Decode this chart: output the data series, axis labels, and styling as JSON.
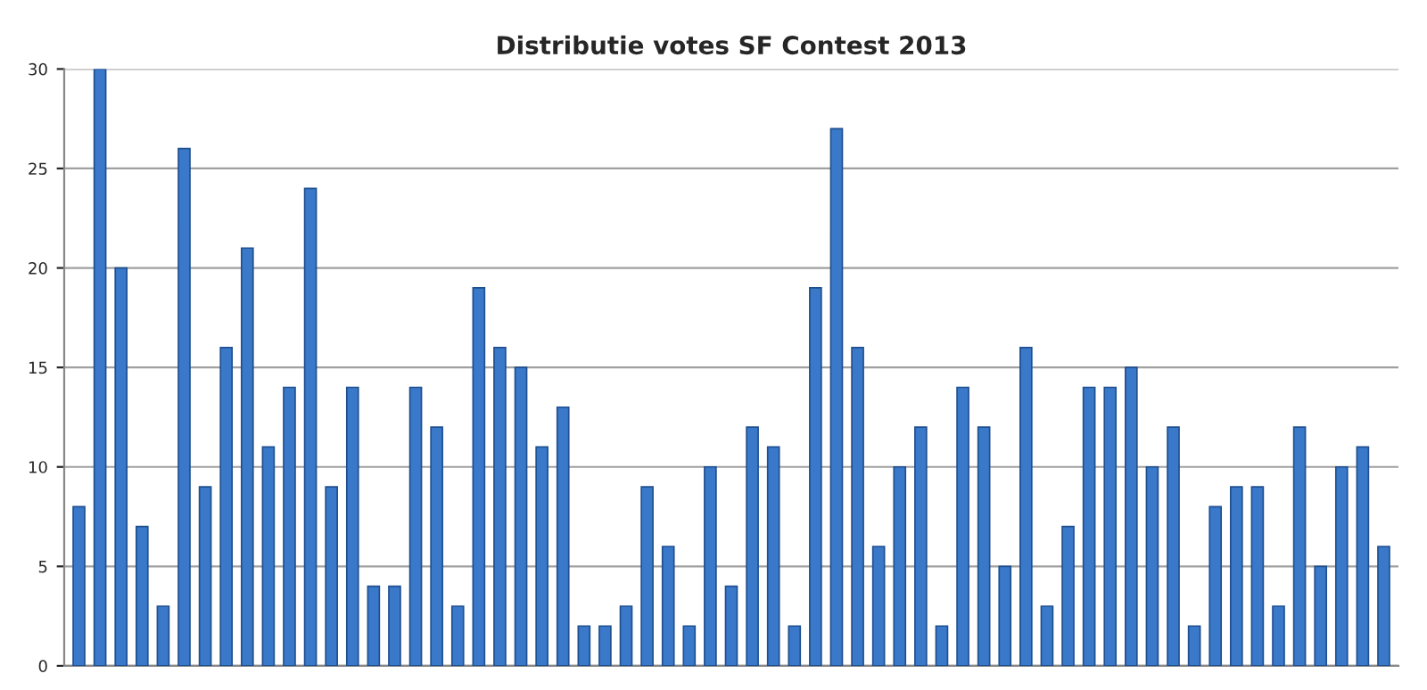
{
  "chart_data": {
    "type": "bar",
    "title": "Distributie votes SF Contest 2013",
    "categories": [
      null,
      null,
      null,
      null,
      null,
      null,
      null,
      null,
      null,
      null,
      null,
      null,
      null,
      null,
      null,
      null,
      null,
      null,
      null,
      null,
      null,
      null,
      null,
      null,
      null,
      null,
      null,
      null,
      null,
      null,
      null,
      null,
      null,
      null,
      null,
      null,
      null,
      null,
      null,
      null,
      null,
      null,
      null,
      null,
      null,
      null,
      null,
      null,
      null,
      null,
      null,
      null,
      null,
      null,
      null,
      null,
      null,
      null,
      null,
      null,
      null,
      null,
      null
    ],
    "values": [
      8,
      30,
      20,
      7,
      3,
      26,
      9,
      16,
      21,
      11,
      14,
      24,
      9,
      14,
      4,
      4,
      14,
      12,
      3,
      19,
      16,
      15,
      11,
      13,
      2,
      2,
      3,
      9,
      6,
      2,
      10,
      4,
      12,
      11,
      2,
      19,
      27,
      16,
      6,
      10,
      12,
      2,
      14,
      12,
      5,
      16,
      3,
      7,
      14,
      14,
      15,
      10,
      12,
      2,
      8,
      9,
      9,
      3,
      12,
      5,
      10,
      11,
      6
    ],
    "color": "#3a78c9",
    "ylim": [
      0,
      30
    ],
    "yticks": [
      0,
      5,
      10,
      15,
      20,
      25,
      30
    ],
    "grid": "y"
  }
}
